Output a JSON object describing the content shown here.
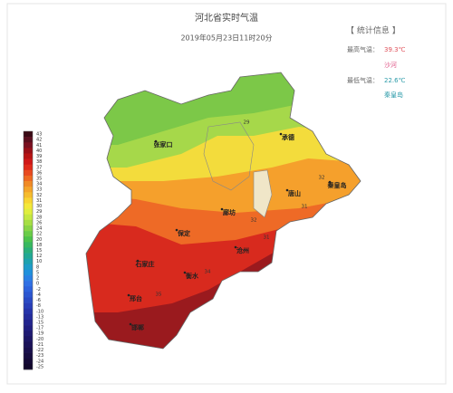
{
  "header": {
    "title": "河北省实时气温",
    "subtitle": "2019年05月23日11时20分"
  },
  "stats": {
    "heading": "【 统计信息 】",
    "max_label": "最高气温：",
    "max_value": "39.3℃",
    "max_place": "沙河",
    "min_label": "最低气温：",
    "min_value": "22.6℃",
    "min_place": "秦皇岛"
  },
  "legend": {
    "labels": [
      "43",
      "42",
      "41",
      "40",
      "39",
      "38",
      "37",
      "36",
      "35",
      "34",
      "33",
      "32",
      "31",
      "30",
      "29",
      "28",
      "26",
      "24",
      "22",
      "20",
      "18",
      "15",
      "12",
      "10",
      "8",
      "5",
      "2",
      "0",
      "-2",
      "-4",
      "-6",
      "-8",
      "-10",
      "-13",
      "-15",
      "-17",
      "-19",
      "-20",
      "-21",
      "-22",
      "-23",
      "-24",
      "-25"
    ],
    "colors": [
      "#3a0a14",
      "#5a0f1e",
      "#7a1020",
      "#9a1018",
      "#b81414",
      "#d01818",
      "#e02a1a",
      "#e84a20",
      "#ee6a22",
      "#f08a26",
      "#f4a42a",
      "#f6bc2e",
      "#f8d432",
      "#f4e83a",
      "#e0ee3e",
      "#c4e842",
      "#a6de44",
      "#88d446",
      "#6acc48",
      "#4cc24c",
      "#38b860",
      "#2aae7a",
      "#22a894",
      "#1ea2ae",
      "#1e9cc8",
      "#2090dc",
      "#2a80e4",
      "#3070e4",
      "#2e62dc",
      "#2c56d0",
      "#2a4ac4",
      "#283eb8",
      "#2634aa",
      "#242c9c",
      "#22248e",
      "#201e80",
      "#1e1a72",
      "#1c1664",
      "#1a1258",
      "#180f4c",
      "#160c40",
      "#140a36",
      "#12082c"
    ]
  },
  "cities": [
    "张家口",
    "承德",
    "唐山",
    "秦皇岛",
    "廊坊",
    "保定",
    "沧州",
    "石家庄",
    "衡水",
    "邢台",
    "邯郸"
  ],
  "contours": [
    "29",
    "32",
    "31",
    "32",
    "31",
    "34",
    "35"
  ]
}
